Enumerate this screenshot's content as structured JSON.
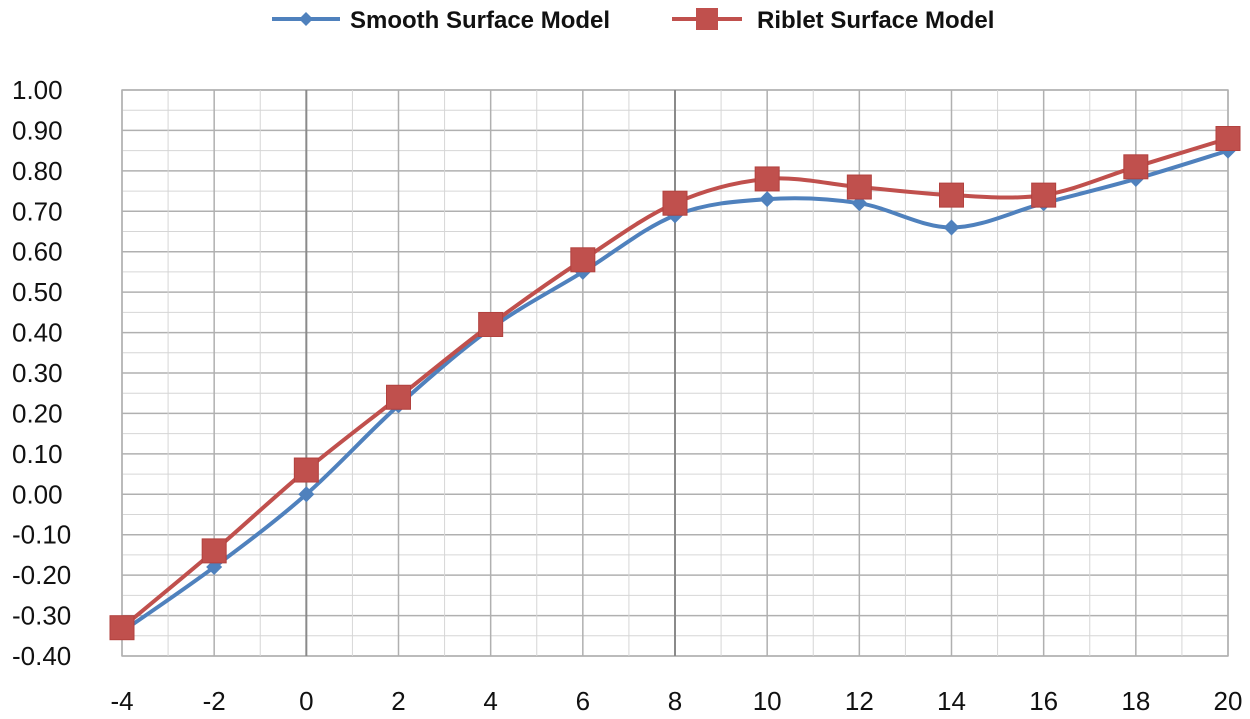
{
  "chart_data": {
    "type": "line",
    "title": "",
    "xlabel": "",
    "ylabel": "",
    "x": [
      -4,
      -2,
      0,
      2,
      4,
      6,
      8,
      10,
      12,
      14,
      16,
      18,
      20
    ],
    "xlim": [
      -4,
      20
    ],
    "ylim": [
      -0.4,
      1.0
    ],
    "x_ticks": [
      "-4",
      "-2",
      "0",
      "2",
      "4",
      "6",
      "8",
      "10",
      "12",
      "14",
      "16",
      "18",
      "20"
    ],
    "y_ticks": [
      "-0.40",
      "-0.30",
      "-0.20",
      "-0.10",
      "0.00",
      "0.10",
      "0.20",
      "0.30",
      "0.40",
      "0.50",
      "0.60",
      "0.70",
      "0.80",
      "0.90",
      "1.00"
    ],
    "grid": true,
    "legend_position": "top-center",
    "series": [
      {
        "name": "Smooth Surface Model",
        "color": "#4f81bd",
        "marker": "diamond",
        "values": [
          -0.34,
          -0.18,
          0.0,
          0.22,
          0.41,
          0.55,
          0.69,
          0.73,
          0.72,
          0.66,
          0.72,
          0.78,
          0.85
        ]
      },
      {
        "name": "Riblet Surface Model",
        "color": "#c0504d",
        "marker": "square",
        "values": [
          -0.33,
          -0.14,
          0.06,
          0.24,
          0.42,
          0.58,
          0.72,
          0.78,
          0.76,
          0.74,
          0.74,
          0.81,
          0.88
        ]
      }
    ]
  }
}
